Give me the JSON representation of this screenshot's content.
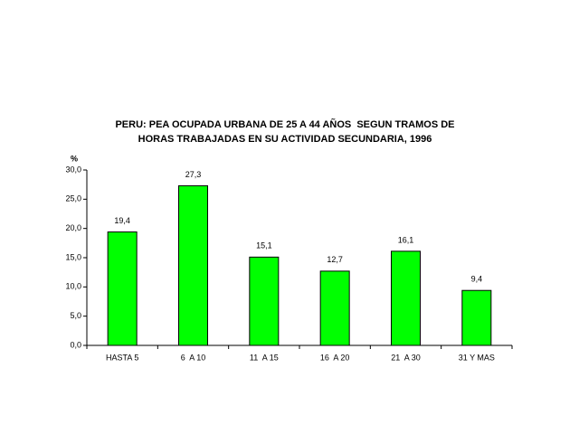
{
  "chart_data": {
    "type": "bar",
    "title": [
      "PERU: PEA OCUPADA URBANA DE 25 A 44 AÑOS  SEGUN TRAMOS DE",
      "HORAS TRABAJADAS EN SU ACTIVIDAD SECUNDARIA, 1996"
    ],
    "y_label": "%",
    "categories": [
      "HASTA 5",
      "6  A 10",
      "11  A 15",
      "16  A 20",
      "21  A 30",
      "31 Y MAS"
    ],
    "values": [
      19.4,
      27.3,
      15.1,
      12.7,
      16.1,
      9.4
    ],
    "value_labels": [
      "19,4",
      "27,3",
      "15,1",
      "12,7",
      "16,1",
      "9,4"
    ],
    "color": "#00ff00",
    "ylim": [
      0,
      30
    ],
    "yticks": [
      {
        "value": 0,
        "label": "0,0"
      },
      {
        "value": 5,
        "label": "5,0"
      },
      {
        "value": 10,
        "label": "10,0"
      },
      {
        "value": 15,
        "label": "15,0"
      },
      {
        "value": 20,
        "label": "20,0"
      },
      {
        "value": 25,
        "label": "25,0"
      },
      {
        "value": 30,
        "label": "30,0"
      }
    ]
  }
}
